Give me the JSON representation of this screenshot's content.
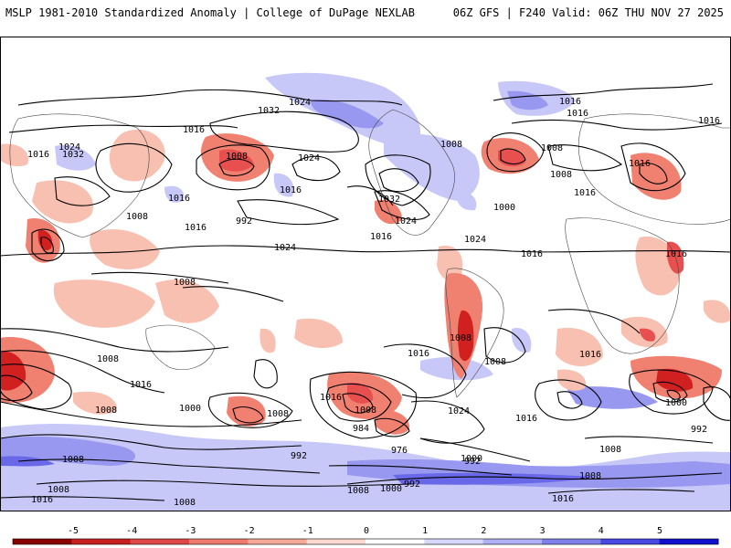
{
  "header": {
    "left": "MSLP 1981-2010 Standardized Anomaly | College of DuPage NEXLAB",
    "right": "06Z GFS | F240 Valid: 06Z THU NOV 27 2025"
  },
  "map": {
    "projection": "global cylindrical",
    "isobar_labels": [
      "1024",
      "1032",
      "1016",
      "1016",
      "1016",
      "1024",
      "1032",
      "1008",
      "1024",
      "1016",
      "1008",
      "1016",
      "1016",
      "1008",
      "992",
      "1016",
      "1032",
      "1024",
      "1016",
      "1024",
      "1008",
      "1000",
      "1016",
      "1008",
      "1016",
      "1024",
      "1016",
      "1008",
      "1008",
      "1016",
      "1016",
      "1008",
      "1000",
      "1016",
      "1008",
      "1008",
      "1008",
      "1016",
      "1024",
      "1016",
      "1016",
      "1008",
      "1000",
      "992",
      "1008",
      "992",
      "984",
      "976",
      "1000",
      "1008",
      "1000",
      "992",
      "1008",
      "1008",
      "1016",
      "1016",
      "1024",
      "1016",
      "1008",
      "1024",
      "1016",
      "1016",
      "1008",
      "992"
    ],
    "anomaly_colors": {
      "neg5": "#8b0000",
      "neg4": "#d02020",
      "neg3": "#e85050",
      "neg2": "#f08070",
      "neg1": "#f8c0b0",
      "zero": "#ffffff",
      "pos1": "#c8c8f8",
      "pos2": "#9898f0",
      "pos3": "#6868e8",
      "pos4": "#3838e0",
      "pos5": "#0000c8"
    }
  },
  "colorbar": {
    "ticks": [
      "-5",
      "-4",
      "-3",
      "-2",
      "-1",
      "0",
      "1",
      "2",
      "3",
      "4",
      "5"
    ],
    "colors": [
      "#8b0000",
      "#c81e1e",
      "#e04848",
      "#ee7a6e",
      "#f6a898",
      "#fbd8d0",
      "#ffffff",
      "#d8d8fa",
      "#b0b0f4",
      "#8080ec",
      "#4848e2",
      "#1010cc"
    ]
  }
}
